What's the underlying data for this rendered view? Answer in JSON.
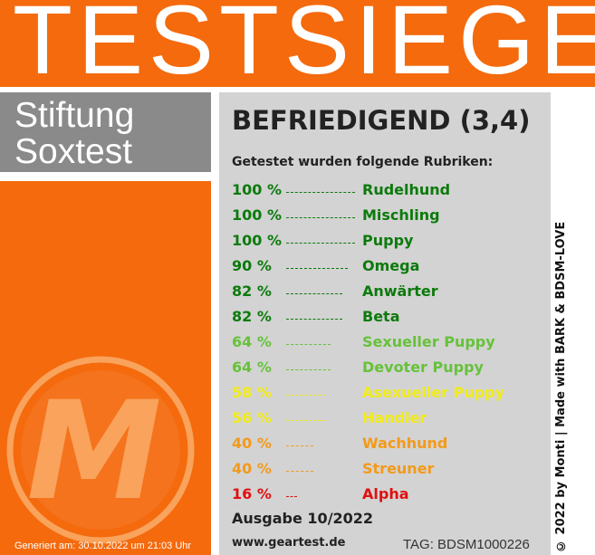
{
  "header": {
    "title": "TESTSIEGER"
  },
  "brand": {
    "line1": "Stiftung",
    "line2": "Soxtest"
  },
  "logo": {
    "letter": "M",
    "color": "#f9a35c"
  },
  "generated": "Generiert am: 30.10.2022 um 21:03 Uhr",
  "rating": "BEFRIEDIGEND (3,4)",
  "intro": "Getestet wurden folgende Rubriken:",
  "results": [
    {
      "percent": "100 %",
      "category": "Rudelhund",
      "value": 100,
      "color": "#0c7a0c"
    },
    {
      "percent": "100 %",
      "category": "Mischling",
      "value": 100,
      "color": "#0c7a0c"
    },
    {
      "percent": "100 %",
      "category": "Puppy",
      "value": 100,
      "color": "#0c7a0c"
    },
    {
      "percent": "90 %",
      "category": "Omega",
      "value": 90,
      "color": "#0c7a0c"
    },
    {
      "percent": "82 %",
      "category": "Anwärter",
      "value": 82,
      "color": "#0c7a0c"
    },
    {
      "percent": "82 %",
      "category": "Beta",
      "value": 82,
      "color": "#0c7a0c"
    },
    {
      "percent": "64 %",
      "category": "Sexueller Puppy",
      "value": 64,
      "color": "#66c23a"
    },
    {
      "percent": "64 %",
      "category": "Devoter Puppy",
      "value": 64,
      "color": "#66c23a"
    },
    {
      "percent": "58 %",
      "category": "Asexueller Puppy",
      "value": 58,
      "color": "#f2ec1a"
    },
    {
      "percent": "56 %",
      "category": "Handler",
      "value": 56,
      "color": "#f2ec1a"
    },
    {
      "percent": "40 %",
      "category": "Wachhund",
      "value": 40,
      "color": "#f39a1a"
    },
    {
      "percent": "40 %",
      "category": "Streuner",
      "value": 40,
      "color": "#f39a1a"
    },
    {
      "percent": "16 %",
      "category": "Alpha",
      "value": 16,
      "color": "#e01010"
    }
  ],
  "issue": "Ausgabe 10/2022",
  "url": "www.geartest.de",
  "tag": "TAG: BDSM1000226",
  "credit": "© 2022 by Monti | Made with BARK & BDSM-LOVE",
  "colors": {
    "orange": "#f46a0d",
    "gray_box": "#8a8a8a",
    "panel": "#d3d3d3"
  }
}
